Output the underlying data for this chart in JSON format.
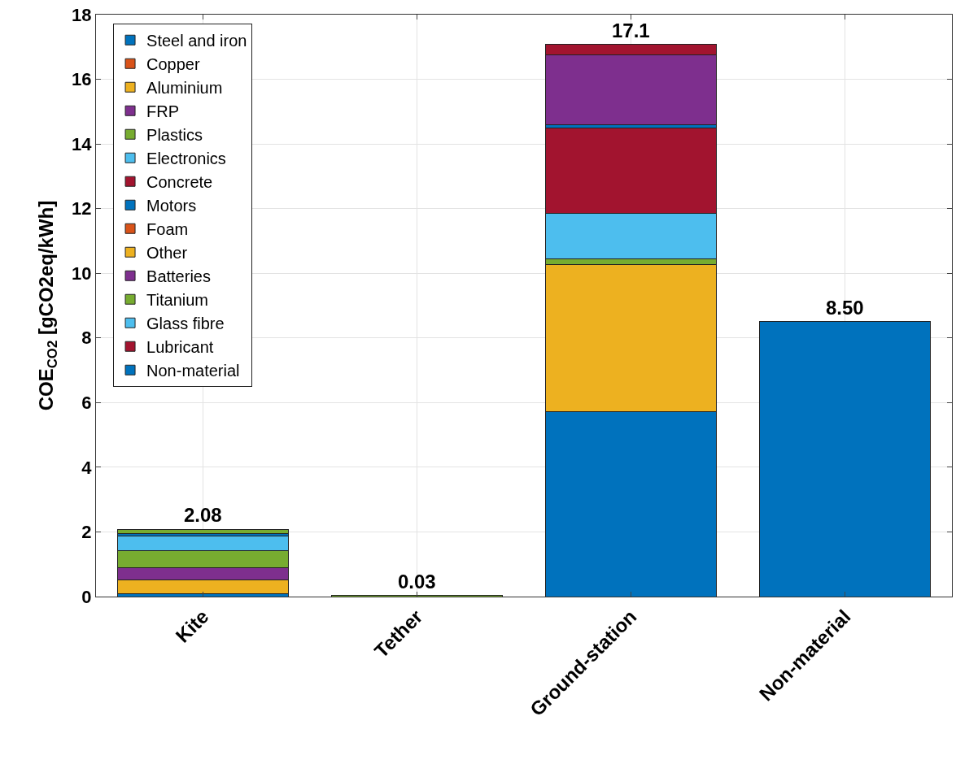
{
  "chart_data": {
    "type": "bar",
    "stacked": true,
    "ylabel": "COE$_{CO2}$ [gCO2eq/kWh]",
    "categories": [
      "Kite",
      "Tether",
      "Ground-station",
      "Non-material"
    ],
    "series": [
      {
        "name": "Steel and iron",
        "color": "#0072bd",
        "values": [
          0.08,
          null,
          5.71,
          null
        ]
      },
      {
        "name": "Copper",
        "color": "#d95319",
        "values": [
          null,
          null,
          null,
          null
        ]
      },
      {
        "name": "Aluminium",
        "color": "#edb120",
        "values": [
          0.43,
          null,
          4.57,
          null
        ]
      },
      {
        "name": "FRP",
        "color": "#7e2f8e",
        "values": [
          0.38,
          null,
          null,
          null
        ]
      },
      {
        "name": "Plastics",
        "color": "#77ac30",
        "values": [
          0.54,
          0.03,
          0.17,
          null
        ]
      },
      {
        "name": "Electronics",
        "color": "#4dbeee",
        "values": [
          0.44,
          null,
          1.4,
          null
        ]
      },
      {
        "name": "Concrete",
        "color": "#a2142f",
        "values": [
          null,
          null,
          2.64,
          null
        ]
      },
      {
        "name": "Motors",
        "color": "#0072bd",
        "values": [
          0.07,
          null,
          0.1,
          null
        ]
      },
      {
        "name": "Foam",
        "color": "#d95319",
        "values": [
          null,
          null,
          null,
          null
        ]
      },
      {
        "name": "Other",
        "color": "#edb120",
        "values": [
          null,
          null,
          null,
          null
        ]
      },
      {
        "name": "Batteries",
        "color": "#7e2f8e",
        "values": [
          null,
          null,
          2.17,
          null
        ]
      },
      {
        "name": "Titanium",
        "color": "#77ac30",
        "values": [
          0.14,
          null,
          null,
          null
        ]
      },
      {
        "name": "Glass fibre",
        "color": "#4dbeee",
        "values": [
          null,
          null,
          null,
          null
        ]
      },
      {
        "name": "Lubricant",
        "color": "#a2142f",
        "values": [
          null,
          null,
          0.31,
          null
        ]
      },
      {
        "name": "Non-material",
        "color": "#0072bd",
        "values": [
          null,
          null,
          null,
          8.5
        ]
      }
    ],
    "totals": [
      "2.08",
      "0.03",
      "17.1",
      "8.50"
    ],
    "ylim": [
      0,
      18
    ],
    "yticks": [
      0,
      2,
      4,
      6,
      8,
      10,
      12,
      14,
      16,
      18
    ],
    "grid": true,
    "legend": "top left"
  }
}
